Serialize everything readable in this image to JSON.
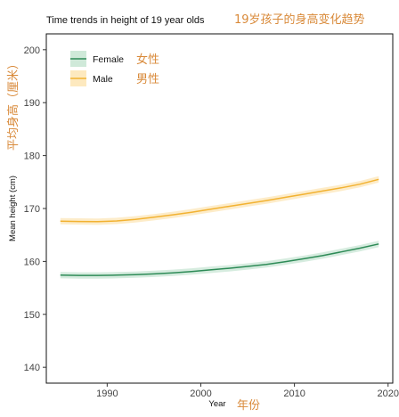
{
  "header": {
    "title": "Time trends in height of 19 year olds",
    "title_cn": "19岁孩子的身高变化趋势"
  },
  "annotations": {
    "ylabel_cn": "平均身高（厘米）",
    "xlabel_cn": "年份",
    "female_cn": "女性",
    "male_cn": "男性"
  },
  "colors": {
    "female": "#2e8b57",
    "female_band": "#cfe9d9",
    "male": "#f2b232",
    "male_band": "#fde9bf",
    "annotation": "#d98a3a"
  },
  "chart_data": {
    "type": "line",
    "title": "Time trends in height of 19 year olds",
    "xlabel": "Year",
    "ylabel": "Mean height (cm)",
    "xlim": [
      1983.5,
      2020.5
    ],
    "ylim": [
      137,
      203
    ],
    "xticks": [
      1990,
      2000,
      2010,
      2020
    ],
    "yticks": [
      140,
      150,
      160,
      170,
      180,
      190,
      200
    ],
    "grid": false,
    "legend_position": "top-left",
    "x": [
      1985,
      1987,
      1989,
      1991,
      1993,
      1995,
      1997,
      1999,
      2001,
      2003,
      2005,
      2007,
      2009,
      2011,
      2013,
      2015,
      2017,
      2019
    ],
    "series": [
      {
        "name": "Female",
        "color": "#2e8b57",
        "values": [
          157.4,
          157.35,
          157.35,
          157.4,
          157.5,
          157.65,
          157.85,
          158.1,
          158.4,
          158.7,
          159.05,
          159.45,
          159.95,
          160.5,
          161.1,
          161.8,
          162.5,
          163.3
        ],
        "band": 0.6
      },
      {
        "name": "Male",
        "color": "#f2b232",
        "values": [
          167.6,
          167.55,
          167.5,
          167.65,
          167.95,
          168.35,
          168.8,
          169.3,
          169.85,
          170.4,
          170.95,
          171.5,
          172.1,
          172.7,
          173.3,
          173.9,
          174.6,
          175.5
        ],
        "band": 0.6
      }
    ]
  }
}
